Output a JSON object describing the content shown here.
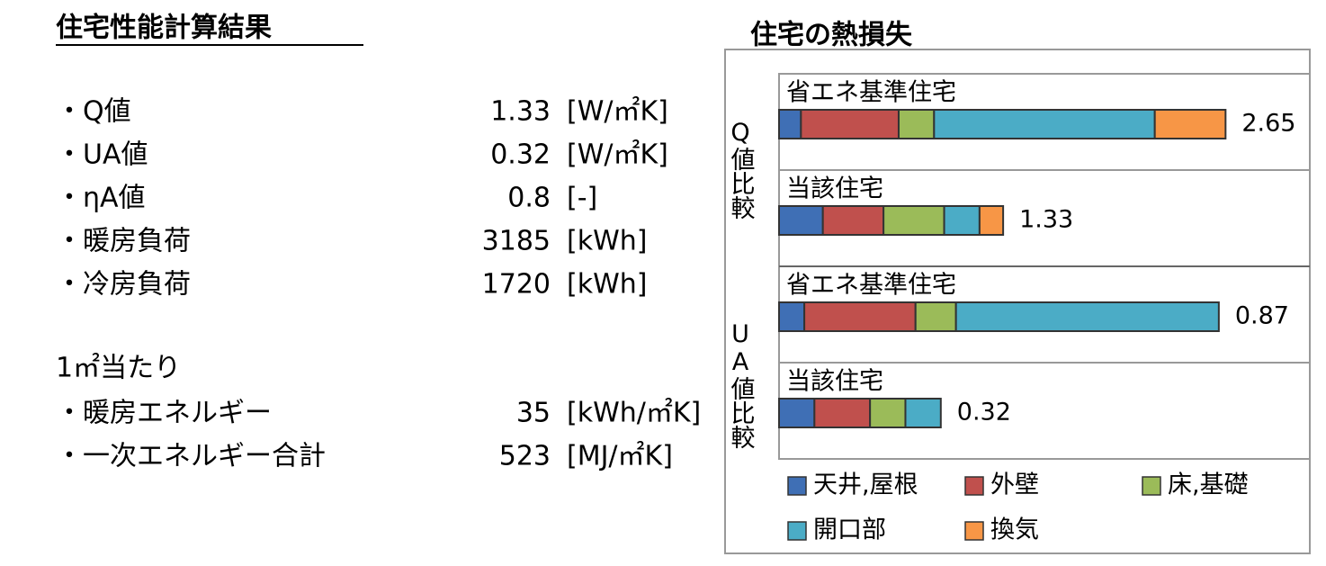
{
  "document": {
    "title": "住宅性能計算結果",
    "items": [
      {
        "name": "・Q値",
        "value": 1.33,
        "unit": "[W/㎡K]"
      },
      {
        "name": "・UA値",
        "value": 0.32,
        "unit": "[W/㎡K]"
      },
      {
        "name": "・ηA値",
        "value": 0.8,
        "unit": "[-]"
      },
      {
        "name": "・暖房負荷",
        "value": 3185,
        "unit": "[kWh]"
      },
      {
        "name": "・冷房負荷",
        "value": 1720,
        "unit": "[kWh]"
      }
    ],
    "section": "1㎡当たり",
    "section_items": [
      {
        "name": "・暖房エネルギー",
        "value": 35,
        "unit": "[kWh/㎡K]"
      },
      {
        "name": "・一次エネルギー合計",
        "value": 523,
        "unit": "[MJ/㎡K]"
      }
    ]
  },
  "chart_data": {
    "type": "bar",
    "orientation": "horizontal",
    "stacked": true,
    "title": "住宅の熱損失",
    "series": [
      {
        "name": "天井,屋根",
        "color": "#3f6fb5"
      },
      {
        "name": "外壁",
        "color": "#c0504d"
      },
      {
        "name": "床,基礎",
        "color": "#9bbb59"
      },
      {
        "name": "開口部",
        "color": "#4bacc6"
      },
      {
        "name": "換気",
        "color": "#f79646"
      }
    ],
    "panels": [
      {
        "label": "Q値比較",
        "xlim": [
          0,
          3.15
        ],
        "categories": [
          "省エネ基準住宅",
          "当該住宅"
        ],
        "totals": [
          2.65,
          1.33
        ],
        "values": [
          [
            0.13,
            0.26
          ],
          [
            0.58,
            0.36
          ],
          [
            0.21,
            0.36
          ],
          [
            1.31,
            0.21
          ],
          [
            0.42,
            0.14
          ]
        ]
      },
      {
        "label": "UA値比較",
        "xlim": [
          0,
          1.05
        ],
        "categories": [
          "省エネ基準住宅",
          "当該住宅"
        ],
        "totals": [
          0.87,
          0.32
        ],
        "values": [
          [
            0.05,
            0.07
          ],
          [
            0.22,
            0.11
          ],
          [
            0.08,
            0.07
          ],
          [
            0.52,
            0.07
          ],
          [
            null,
            null
          ]
        ]
      }
    ]
  }
}
